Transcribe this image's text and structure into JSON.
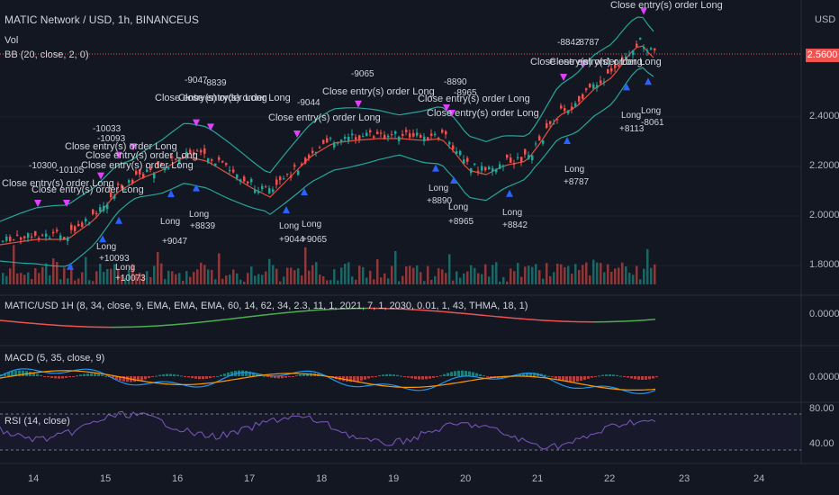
{
  "header": {
    "symbol_title": "MATIC Network / USD, 1h, BINANCEUS",
    "vol_label": "Vol",
    "bb_label": "BB (20, close, 2, 0)",
    "currency": "USD",
    "last_price": "2.5600"
  },
  "price_axis": [
    "2.4000",
    "2.2000",
    "2.0000",
    "1.8000"
  ],
  "osc_pane": {
    "label": "MATIC/USD 1H (8, 34, close, 9, EMA, EMA, EMA, 60, 14, 62, 34, 2.3, 11, 1, 2021, 7, 1, 2030, 0.01, 1, 43, THMA, 18, 1)",
    "axis": "0.0000"
  },
  "macd_pane": {
    "label": "MACD (5, 35, close, 9)",
    "axis": "0.0000"
  },
  "rsi_pane": {
    "label": "RSI (14, close)",
    "axis": [
      "80.00",
      "40.00"
    ]
  },
  "time_axis": [
    "14",
    "15",
    "16",
    "17",
    "18",
    "19",
    "20",
    "21",
    "22",
    "23",
    "24"
  ],
  "strategy_labels": [
    "-10300",
    "-10105",
    "Close entry(s) order Long",
    "Close entry(s) order Long",
    "-10033",
    "-10093",
    "Close entry(s) order Long",
    "Close entry(s) order Long",
    "Close entry(s) order Long",
    "-9047",
    "-8839",
    "Close entry(s) order Long",
    "Close entry(s) order Long",
    "-9044",
    "Close entry(s) order Long",
    "-9065",
    "Close entry(s) order Long",
    "-8890",
    "-8965",
    "Close entry(s) order Long",
    "Close entry(s) order Long",
    "-8842",
    "-8787",
    "Close entry(s) order Long",
    "Close entry(s) order Long",
    "Close entry(s) order Long",
    "Long",
    "+10093",
    "Long",
    "+10073",
    "Long",
    "+9047",
    "Long",
    "+8839",
    "Long",
    "+9044",
    "Long",
    "+9065",
    "Long",
    "+8890",
    "Long",
    "+8965",
    "Long",
    "+8842",
    "Long",
    "+8787",
    "Long",
    "+8113",
    "Long",
    "-8061"
  ],
  "colors": {
    "background": "#131722",
    "up": "#26a69a",
    "down": "#ef5350",
    "bb_band": "#26a69a",
    "bb_basis": "#e0523f",
    "entry_arrow": "#2962ff",
    "exit_arrow": "#e040fb",
    "macd_line": "#2196f3",
    "signal_line": "#ff9800",
    "rsi_line": "#7e57c2",
    "price_tag": "#ef5350"
  }
}
